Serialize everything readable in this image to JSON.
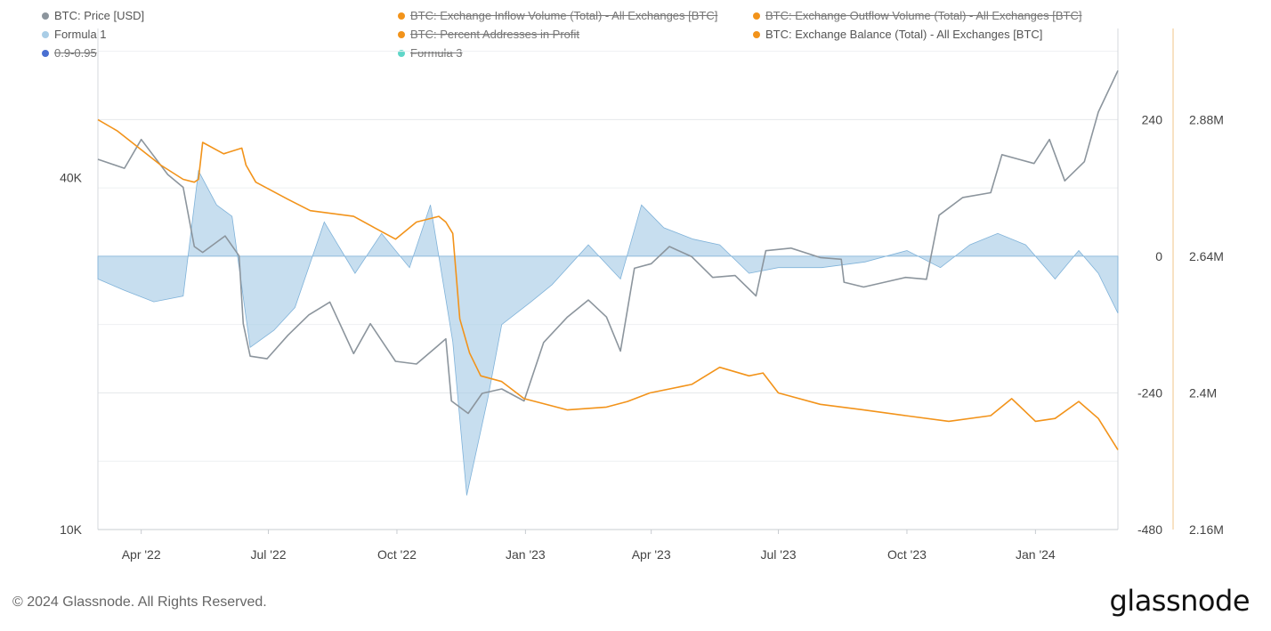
{
  "legend": [
    {
      "label": "BTC: Price [USD]",
      "color": "#8c959d",
      "enabled": true
    },
    {
      "label": "BTC: Exchange Inflow Volume (Total) - All Exchanges [BTC]",
      "color": "#f2931a",
      "enabled": false
    },
    {
      "label": "BTC: Exchange Outflow Volume (Total) - All Exchanges [BTC]",
      "color": "#f2931a",
      "enabled": false
    },
    {
      "label": "Formula 1",
      "color": "#a9cde6",
      "enabled": true
    },
    {
      "label": "BTC: Percent Addresses in Profit",
      "color": "#f2931a",
      "enabled": false
    },
    {
      "label": "BTC: Exchange Balance (Total) - All Exchanges [BTC]",
      "color": "#f2931a",
      "enabled": true
    },
    {
      "label": "0.9-0.95",
      "color": "#4a6fd1",
      "enabled": false
    },
    {
      "label": "Formula 3",
      "color": "#5fd6c8",
      "enabled": false
    }
  ],
  "footer": {
    "copyright": "© 2024 Glassnode. All Rights Reserved.",
    "brand": "glassnode"
  },
  "chart_data": {
    "type": "line",
    "x_axis": {
      "ticks": [
        "Apr '22",
        "Jul '22",
        "Oct '22",
        "Jan '23",
        "Apr '23",
        "Jul '23",
        "Oct '23",
        "Jan '24"
      ],
      "range": [
        "2022-03-01",
        "2024-02-29"
      ]
    },
    "left_axis": {
      "scale": "log",
      "ticks": [
        "40K",
        "10K"
      ],
      "range": [
        10000,
        72000
      ]
    },
    "right_axis_1": {
      "ticks": [
        "240",
        "0",
        "-240",
        "-480"
      ],
      "range": [
        -480,
        400
      ]
    },
    "right_axis_2": {
      "ticks": [
        "2.88M",
        "2.64M",
        "2.4M",
        "2.16M"
      ],
      "range": [
        2160000,
        3040000
      ]
    },
    "grid": "horizontal",
    "series": [
      {
        "name": "BTC: Price [USD]",
        "color": "#8c959d",
        "axis": "left",
        "x": [
          "2022-03-01",
          "2022-03-20",
          "2022-04-01",
          "2022-04-20",
          "2022-05-01",
          "2022-05-09",
          "2022-05-15",
          "2022-05-31",
          "2022-06-10",
          "2022-06-13",
          "2022-06-18",
          "2022-06-30",
          "2022-07-15",
          "2022-07-30",
          "2022-08-14",
          "2022-08-31",
          "2022-09-12",
          "2022-09-30",
          "2022-10-15",
          "2022-10-30",
          "2022-11-05",
          "2022-11-09",
          "2022-11-21",
          "2022-12-01",
          "2022-12-15",
          "2022-12-31",
          "2023-01-14",
          "2023-01-31",
          "2023-02-15",
          "2023-02-28",
          "2023-03-10",
          "2023-03-20",
          "2023-04-01",
          "2023-04-14",
          "2023-04-30",
          "2023-05-15",
          "2023-05-31",
          "2023-06-15",
          "2023-06-22",
          "2023-07-10",
          "2023-07-31",
          "2023-08-15",
          "2023-08-17",
          "2023-08-31",
          "2023-09-15",
          "2023-09-30",
          "2023-10-15",
          "2023-10-24",
          "2023-11-10",
          "2023-11-30",
          "2023-12-08",
          "2023-12-31",
          "2024-01-11",
          "2024-01-22",
          "2024-02-05",
          "2024-02-15",
          "2024-02-29"
        ],
        "values": [
          43000,
          41500,
          46500,
          40500,
          38500,
          30500,
          29800,
          31800,
          29400,
          22500,
          19800,
          19600,
          21500,
          23300,
          24500,
          20000,
          22500,
          19400,
          19200,
          20600,
          21200,
          16600,
          15800,
          17100,
          17400,
          16600,
          20900,
          23100,
          24700,
          23100,
          20200,
          28000,
          28500,
          30500,
          29300,
          27000,
          27200,
          25100,
          30000,
          30300,
          29200,
          29000,
          26500,
          26000,
          26500,
          27000,
          26800,
          34500,
          37000,
          37700,
          43800,
          42300,
          46500,
          39500,
          42600,
          51800,
          61000
        ]
      },
      {
        "name": "BTC: Exchange Balance (Total) - All Exchanges [BTC]",
        "color": "#f2931a",
        "axis": "right_2",
        "x": [
          "2022-03-01",
          "2022-03-15",
          "2022-04-15",
          "2022-05-01",
          "2022-05-09",
          "2022-05-12",
          "2022-05-15",
          "2022-05-30",
          "2022-06-12",
          "2022-06-15",
          "2022-06-22",
          "2022-07-15",
          "2022-07-31",
          "2022-08-31",
          "2022-09-15",
          "2022-09-30",
          "2022-10-15",
          "2022-10-31",
          "2022-11-05",
          "2022-11-10",
          "2022-11-15",
          "2022-11-22",
          "2022-11-30",
          "2022-12-15",
          "2022-12-31",
          "2023-01-31",
          "2023-02-28",
          "2023-03-15",
          "2023-03-31",
          "2023-04-30",
          "2023-05-20",
          "2023-06-10",
          "2023-06-20",
          "2023-07-01",
          "2023-07-31",
          "2023-08-31",
          "2023-09-30",
          "2023-10-31",
          "2023-11-30",
          "2023-12-15",
          "2024-01-01",
          "2024-01-15",
          "2024-02-01",
          "2024-02-15",
          "2024-02-29"
        ],
        "values": [
          2880000,
          2860000,
          2800000,
          2775000,
          2770000,
          2775000,
          2840000,
          2820000,
          2830000,
          2800000,
          2770000,
          2740000,
          2720000,
          2710000,
          2690000,
          2670000,
          2700000,
          2710000,
          2700000,
          2680000,
          2530000,
          2470000,
          2430000,
          2420000,
          2390000,
          2370000,
          2375000,
          2385000,
          2400000,
          2415000,
          2445000,
          2430000,
          2435000,
          2400000,
          2380000,
          2370000,
          2360000,
          2350000,
          2360000,
          2390000,
          2350000,
          2355000,
          2385000,
          2355000,
          2300000
        ]
      },
      {
        "name": "Formula 1",
        "color": "#a9cde6",
        "axis": "right_1",
        "style": "area",
        "x": [
          "2022-03-01",
          "2022-03-20",
          "2022-04-10",
          "2022-05-01",
          "2022-05-12",
          "2022-05-25",
          "2022-06-05",
          "2022-06-18",
          "2022-07-05",
          "2022-07-20",
          "2022-08-10",
          "2022-09-01",
          "2022-09-20",
          "2022-10-10",
          "2022-10-25",
          "2022-11-10",
          "2022-11-20",
          "2022-12-05",
          "2022-12-15",
          "2023-01-05",
          "2023-01-20",
          "2023-02-15",
          "2023-03-10",
          "2023-03-25",
          "2023-04-10",
          "2023-05-01",
          "2023-05-20",
          "2023-06-10",
          "2023-07-01",
          "2023-08-01",
          "2023-09-01",
          "2023-10-01",
          "2023-10-25",
          "2023-11-15",
          "2023-12-05",
          "2023-12-25",
          "2024-01-15",
          "2024-02-01",
          "2024-02-15",
          "2024-02-29"
        ],
        "values": [
          -40,
          -60,
          -80,
          -70,
          150,
          90,
          70,
          -160,
          -130,
          -90,
          60,
          -30,
          40,
          -20,
          90,
          -150,
          -420,
          -250,
          -120,
          -80,
          -50,
          20,
          -40,
          90,
          50,
          30,
          20,
          -30,
          -20,
          -20,
          -10,
          10,
          -20,
          20,
          40,
          20,
          -40,
          10,
          -30,
          -100
        ]
      }
    ]
  }
}
